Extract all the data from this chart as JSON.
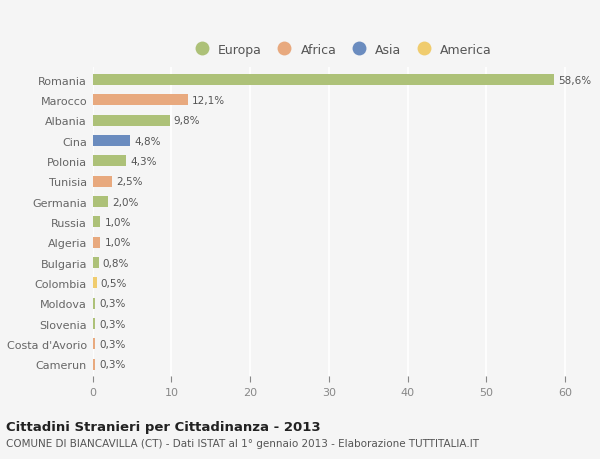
{
  "countries": [
    "Romania",
    "Marocco",
    "Albania",
    "Cina",
    "Polonia",
    "Tunisia",
    "Germania",
    "Russia",
    "Algeria",
    "Bulgaria",
    "Colombia",
    "Moldova",
    "Slovenia",
    "Costa d'Avorio",
    "Camerun"
  ],
  "values": [
    58.6,
    12.1,
    9.8,
    4.8,
    4.3,
    2.5,
    2.0,
    1.0,
    1.0,
    0.8,
    0.5,
    0.3,
    0.3,
    0.3,
    0.3
  ],
  "labels": [
    "58,6%",
    "12,1%",
    "9,8%",
    "4,8%",
    "4,3%",
    "2,5%",
    "2,0%",
    "1,0%",
    "1,0%",
    "0,8%",
    "0,5%",
    "0,3%",
    "0,3%",
    "0,3%",
    "0,3%"
  ],
  "continent": [
    "Europa",
    "Africa",
    "Europa",
    "Asia",
    "Europa",
    "Africa",
    "Europa",
    "Europa",
    "Africa",
    "Europa",
    "America",
    "Europa",
    "Europa",
    "Africa",
    "Africa"
  ],
  "colors": {
    "Europa": "#adc178",
    "Africa": "#e8a97e",
    "Asia": "#6b8cbf",
    "America": "#f0cc6e"
  },
  "bg_color": "#f5f5f5",
  "grid_color": "#ffffff",
  "title": "Cittadini Stranieri per Cittadinanza - 2013",
  "subtitle": "COMUNE DI BIANCAVILLA (CT) - Dati ISTAT al 1° gennaio 2013 - Elaborazione TUTTITALIA.IT",
  "xlim": [
    0,
    63
  ],
  "xticks": [
    0,
    10,
    20,
    30,
    40,
    50,
    60
  ],
  "bar_height": 0.55,
  "figsize": [
    6.0,
    4.6
  ],
  "dpi": 100
}
